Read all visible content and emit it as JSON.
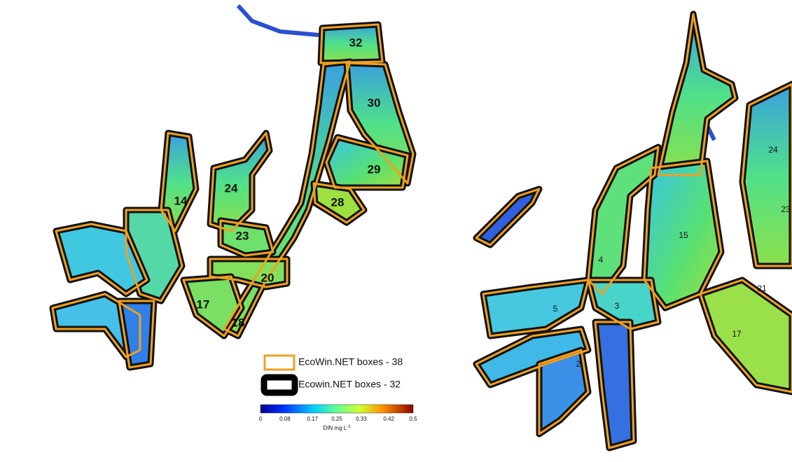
{
  "left_map": {
    "box_labels": [
      "32",
      "30",
      "29",
      "28",
      "24",
      "23",
      "20",
      "18",
      "17",
      "14"
    ]
  },
  "right_map": {
    "box_labels": [
      "24",
      "23",
      "15",
      "4",
      "3",
      "5",
      "2",
      "21",
      "17"
    ]
  },
  "legend": {
    "items": [
      "EcoWin.NET boxes - 38",
      "Ecowin.NET boxes - 32"
    ]
  },
  "colorbar": {
    "ticks": [
      "0",
      "0.08",
      "0.17",
      "0.25",
      "0.33",
      "0.42",
      "0.5"
    ],
    "label": "DIN mg L",
    "label_sup": "-1"
  }
}
